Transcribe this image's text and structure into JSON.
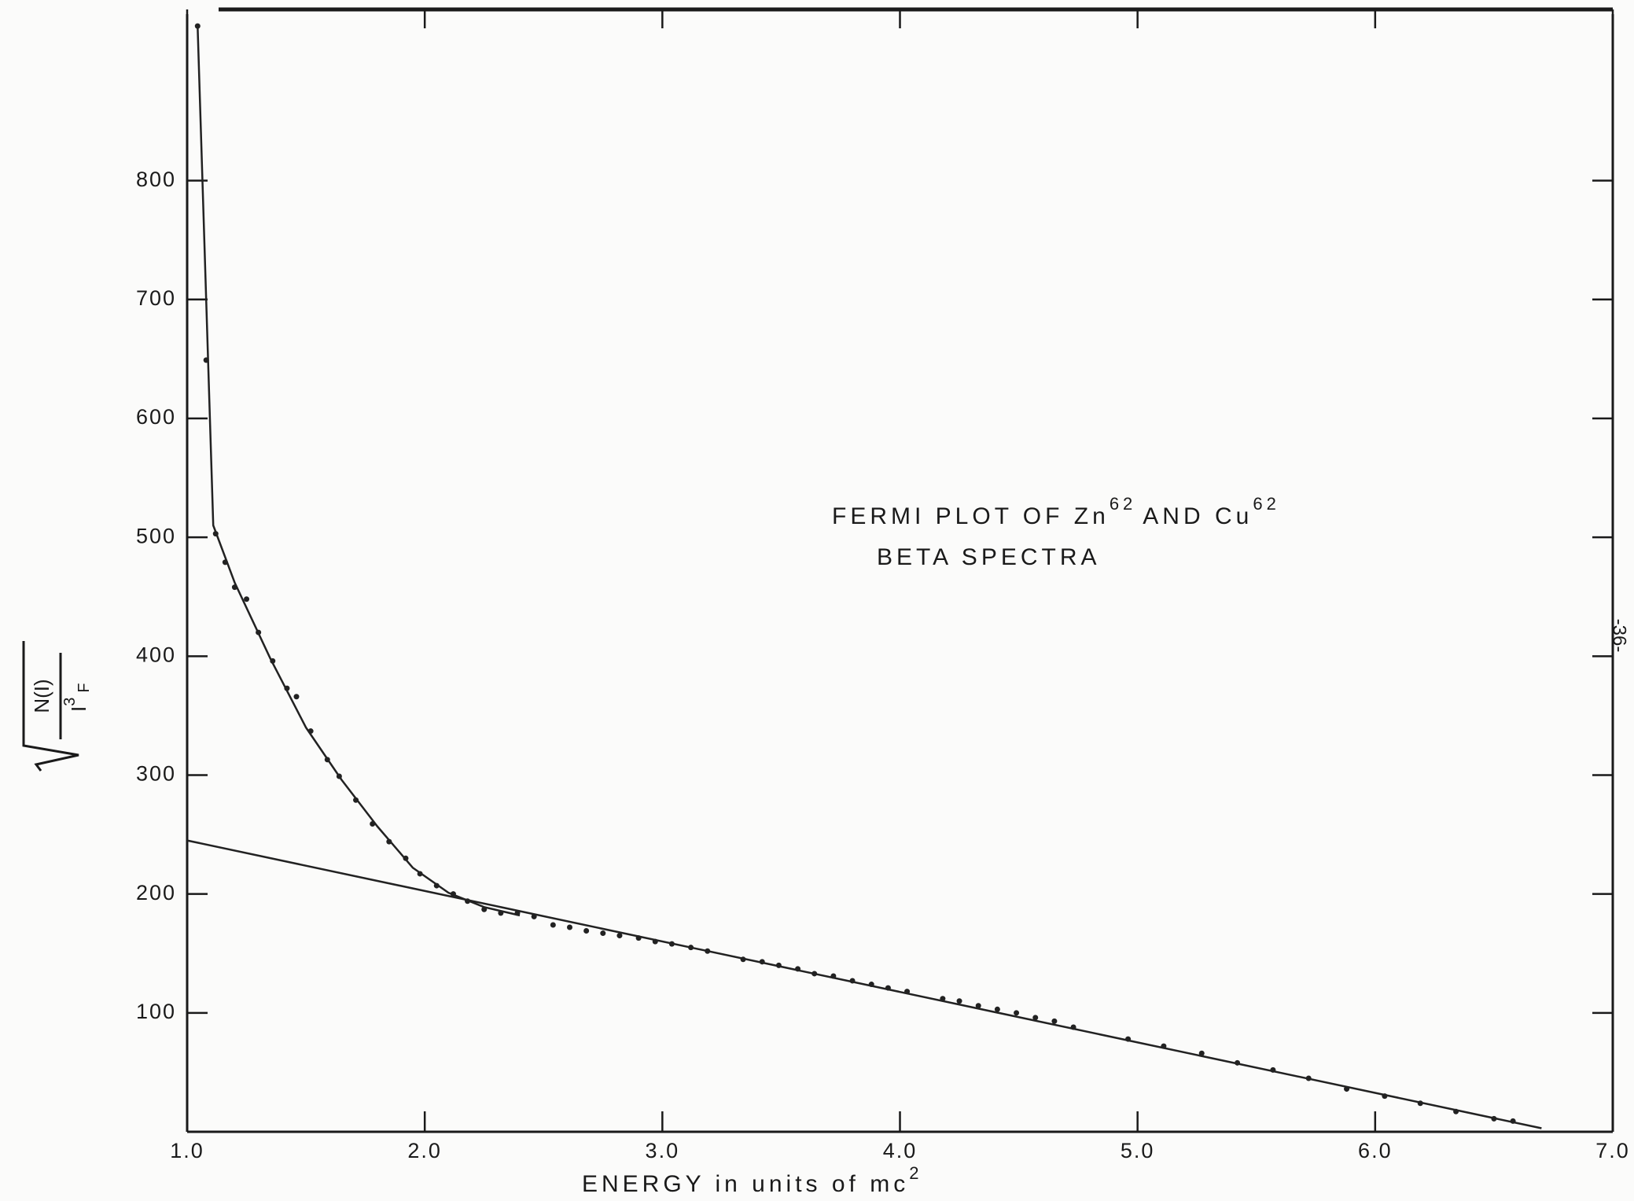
{
  "chart_data": {
    "type": "scatter",
    "title": "FERMI PLOT OF Zn",
    "title_superscript_1": "62",
    "title_middle": "AND Cu",
    "title_superscript_2": "62",
    "subtitle": "BETA SPECTRA",
    "x_label": "ENERGY in units of mc",
    "x_label_superscript": "2",
    "y_label": {
      "numerator": "N(I)",
      "denominator": "I",
      "denominator_superscript": "3",
      "denominator_subscript": "F"
    },
    "page_number": "-36-",
    "xlim": [
      1.0,
      7.0
    ],
    "ylim": [
      0,
      940
    ],
    "xticks": [
      {
        "value": 1,
        "label": "1.0"
      },
      {
        "value": 2,
        "label": "2.0"
      },
      {
        "value": 3,
        "label": "3.0"
      },
      {
        "value": 4,
        "label": "4.0"
      },
      {
        "value": 5,
        "label": "5.0"
      },
      {
        "value": 6,
        "label": "6.0"
      },
      {
        "value": 7,
        "label": "7.0"
      }
    ],
    "yticks": [
      100,
      200,
      300,
      400,
      500,
      600,
      700,
      800
    ],
    "grid": false,
    "series": [
      {
        "type": "scatter",
        "color": "#222222",
        "x": [
          1.044,
          1.08,
          1.12,
          1.16,
          1.2,
          1.25,
          1.3,
          1.36,
          1.42,
          1.46,
          1.52,
          1.59,
          1.64,
          1.71,
          1.78,
          1.85,
          1.92,
          1.98,
          2.05,
          2.12,
          2.18,
          2.25,
          2.32,
          2.39,
          2.46,
          2.54,
          2.61,
          2.68,
          2.75,
          2.82,
          2.9,
          2.97,
          3.04,
          3.12,
          3.19,
          3.34,
          3.42,
          3.49,
          3.57,
          3.64,
          3.72,
          3.8,
          3.88,
          3.95,
          4.03,
          4.18,
          4.25,
          4.33,
          4.41,
          4.49,
          4.57,
          4.65,
          4.73,
          4.96,
          5.11,
          5.27,
          5.42,
          5.57,
          5.72,
          5.88,
          6.04,
          6.19,
          6.34,
          6.5,
          6.58
        ],
        "values": [
          930,
          649,
          503,
          479,
          458,
          448,
          420,
          396,
          373,
          366,
          337,
          313,
          299,
          279,
          259,
          244,
          230,
          217,
          207,
          200,
          194,
          187,
          184,
          184,
          181,
          174,
          172,
          169,
          167,
          165,
          163,
          160,
          158,
          155,
          152,
          145,
          143,
          140,
          137,
          133,
          131,
          127,
          124,
          121,
          118,
          112,
          110,
          106,
          103,
          100,
          96,
          93,
          88,
          78,
          72,
          66,
          58,
          52,
          45,
          36,
          30,
          24,
          17,
          11,
          9
        ]
      },
      {
        "type": "line",
        "color": "#222222",
        "x": [
          1.044,
          1.11,
          1.2,
          1.35,
          1.5,
          1.65,
          1.8,
          1.95,
          2.1,
          2.25,
          2.4
        ],
        "values": [
          930,
          510,
          462,
          398,
          340,
          296,
          257,
          222,
          201,
          189,
          182
        ]
      },
      {
        "type": "line",
        "color": "#222222",
        "x": [
          1.0,
          6.7
        ],
        "values": [
          245,
          3
        ]
      }
    ]
  }
}
